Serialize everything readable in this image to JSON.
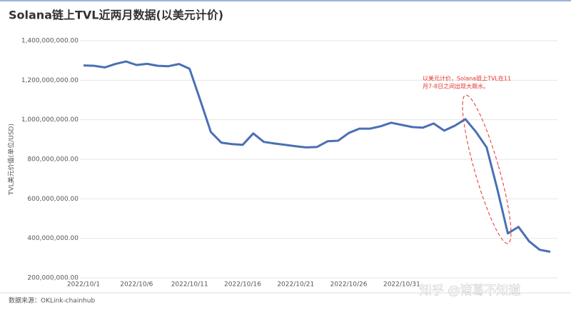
{
  "chart_data": {
    "type": "line",
    "title": "Solana链上TVL近两月数据(以美元计价)",
    "y_label": "TVL美元价值(单位/USD)",
    "annotation": [
      "以美元计价，Solana链上TVL在11",
      "月7-8日之间出现大跳水。"
    ],
    "source": "数据来源：OKLink-chainhub",
    "watermark": "知乎 @诸葛不知道",
    "categories": [
      "2022/10/1",
      null,
      null,
      null,
      null,
      "2022/10/6",
      null,
      null,
      null,
      null,
      "2022/10/11",
      null,
      null,
      null,
      null,
      "2022/10/16",
      null,
      null,
      null,
      null,
      "2022/10/21",
      null,
      null,
      null,
      null,
      "2022/10/26",
      null,
      null,
      null,
      null,
      "2022/10/31",
      null,
      null,
      null,
      null,
      null,
      null,
      null,
      null,
      null,
      null,
      null,
      null,
      null,
      null
    ],
    "values": [
      1275000000,
      1273000000,
      1265000000,
      1282000000,
      1295000000,
      1277000000,
      1283000000,
      1273000000,
      1271000000,
      1282000000,
      1258000000,
      1100000000,
      938000000,
      884000000,
      877000000,
      873000000,
      931000000,
      888000000,
      880000000,
      873000000,
      866000000,
      860000000,
      862000000,
      891000000,
      894000000,
      933000000,
      955000000,
      955000000,
      967000000,
      985000000,
      974000000,
      963000000,
      960000000,
      981000000,
      945000000,
      970000000,
      1003000000,
      938000000,
      860000000,
      650000000,
      425000000,
      458000000,
      385000000,
      342000000,
      332000000
    ],
    "color": "#4a6fb5",
    "ylim": [
      200000000,
      1400000000
    ],
    "yticks": [
      {
        "value": 200000000,
        "label": "200,000,000.00"
      },
      {
        "value": 400000000,
        "label": "400,000,000.00"
      },
      {
        "value": 600000000,
        "label": "600,000,000.00"
      },
      {
        "value": 800000000,
        "label": "800,000,000.00"
      },
      {
        "value": 1000000000,
        "label": "1,000,000,000.00"
      },
      {
        "value": 1200000000,
        "label": "1,200,000,000.00"
      },
      {
        "value": 1400000000,
        "label": "1,400,000,000.00"
      }
    ],
    "grid": true
  }
}
